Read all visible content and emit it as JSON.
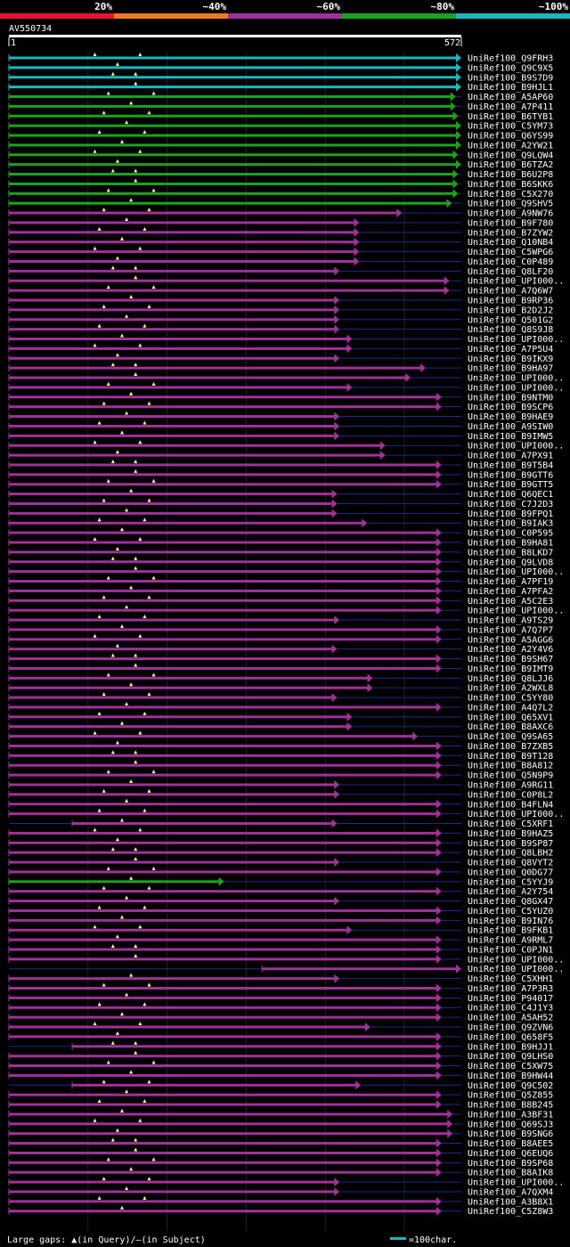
{
  "header": {
    "legend_bands": [
      {
        "label": "20%",
        "color": "#e8142b"
      },
      {
        "label": "~40%",
        "color": "#ef7a1e"
      },
      {
        "label": "~60%",
        "color": "#a0309a"
      },
      {
        "label": "~80%",
        "color": "#1ea21e"
      },
      {
        "label": "~100%",
        "color": "#19b8c0"
      }
    ],
    "query_id": "AV550734",
    "ruler_start": "1",
    "ruler_end": "572"
  },
  "colors": {
    "cyan": "#19b8c0",
    "green": "#1ea21e",
    "magenta": "#a0309a",
    "gap_line": "#1e2a8a",
    "gap_marker": "#ffff80",
    "grid": "#222222"
  },
  "query_length": 572,
  "hits": [
    {
      "label": "UniRef100_Q9FRH3",
      "c": "cyan",
      "s": 0,
      "e": 572
    },
    {
      "label": "UniRef100_Q9C9X5",
      "c": "cyan",
      "s": 0,
      "e": 572
    },
    {
      "label": "UniRef100_B9S7D9",
      "c": "cyan",
      "s": 0,
      "e": 572
    },
    {
      "label": "UniRef100_B9HJL1",
      "c": "cyan",
      "s": 0,
      "e": 572
    },
    {
      "label": "UniRef100_A5AP60",
      "c": "green",
      "s": 0,
      "e": 565
    },
    {
      "label": "UniRef100_A7P411",
      "c": "green",
      "s": 0,
      "e": 565
    },
    {
      "label": "UniRef100_B6TYB1",
      "c": "green",
      "s": 0,
      "e": 568
    },
    {
      "label": "UniRef100_C5YM73",
      "c": "green",
      "s": 0,
      "e": 572
    },
    {
      "label": "UniRef100_Q6YS99",
      "c": "green",
      "s": 0,
      "e": 572
    },
    {
      "label": "UniRef100_A2YW21",
      "c": "green",
      "s": 0,
      "e": 572
    },
    {
      "label": "UniRef100_Q9LQW4",
      "c": "green",
      "s": 0,
      "e": 568
    },
    {
      "label": "UniRef100_B6TZA2",
      "c": "green",
      "s": 0,
      "e": 572
    },
    {
      "label": "UniRef100_B6U2P8",
      "c": "green",
      "s": 0,
      "e": 568
    },
    {
      "label": "UniRef100_B6SKK6",
      "c": "green",
      "s": 0,
      "e": 568
    },
    {
      "label": "UniRef100_C5X270",
      "c": "green",
      "s": 0,
      "e": 568
    },
    {
      "label": "UniRef100_Q9SHV5",
      "c": "green",
      "s": 0,
      "e": 560
    },
    {
      "label": "UniRef100_A9NW76",
      "c": "magenta",
      "s": 0,
      "e": 497
    },
    {
      "label": "UniRef100_B9F780",
      "c": "magenta",
      "s": 0,
      "e": 443
    },
    {
      "label": "UniRef100_B7ZYW2",
      "c": "magenta",
      "s": 0,
      "e": 443
    },
    {
      "label": "UniRef100_Q10NB4",
      "c": "magenta",
      "s": 0,
      "e": 443
    },
    {
      "label": "UniRef100_C5WPG6",
      "c": "magenta",
      "s": 0,
      "e": 443
    },
    {
      "label": "UniRef100_C0P489",
      "c": "magenta",
      "s": 0,
      "e": 443
    },
    {
      "label": "UniRef100_Q8LF20",
      "c": "magenta",
      "s": 0,
      "e": 418
    },
    {
      "label": "UniRef100_UPI000..",
      "c": "magenta",
      "s": 0,
      "e": 557
    },
    {
      "label": "UniRef100_A7Q6W7",
      "c": "magenta",
      "s": 0,
      "e": 557
    },
    {
      "label": "UniRef100_B9RP36",
      "c": "magenta",
      "s": 0,
      "e": 418
    },
    {
      "label": "UniRef100_B2D2J2",
      "c": "magenta",
      "s": 0,
      "e": 418
    },
    {
      "label": "UniRef100_Q501G2",
      "c": "magenta",
      "s": 0,
      "e": 418
    },
    {
      "label": "UniRef100_Q8S9J8",
      "c": "magenta",
      "s": 0,
      "e": 418
    },
    {
      "label": "UniRef100_UPI000..",
      "c": "magenta",
      "s": 0,
      "e": 434
    },
    {
      "label": "UniRef100_A7P5U4",
      "c": "magenta",
      "s": 0,
      "e": 434
    },
    {
      "label": "UniRef100_B9IKX9",
      "c": "magenta",
      "s": 0,
      "e": 418
    },
    {
      "label": "UniRef100_B9HA97",
      "c": "magenta",
      "s": 0,
      "e": 527
    },
    {
      "label": "UniRef100_UPI000..",
      "c": "magenta",
      "s": 0,
      "e": 508
    },
    {
      "label": "UniRef100_UPI000..",
      "c": "magenta",
      "s": 0,
      "e": 434
    },
    {
      "label": "UniRef100_B9NTM0",
      "c": "magenta",
      "s": 0,
      "e": 547
    },
    {
      "label": "UniRef100_B9SCP6",
      "c": "magenta",
      "s": 0,
      "e": 547
    },
    {
      "label": "UniRef100_B9HAE9",
      "c": "magenta",
      "s": 0,
      "e": 418
    },
    {
      "label": "UniRef100_A9SIW0",
      "c": "magenta",
      "s": 0,
      "e": 418
    },
    {
      "label": "UniRef100_B9IMW5",
      "c": "magenta",
      "s": 0,
      "e": 418
    },
    {
      "label": "UniRef100_UPI000..",
      "c": "magenta",
      "s": 0,
      "e": 476
    },
    {
      "label": "UniRef100_A7PX91",
      "c": "magenta",
      "s": 0,
      "e": 476
    },
    {
      "label": "UniRef100_B9T5B4",
      "c": "magenta",
      "s": 0,
      "e": 547
    },
    {
      "label": "UniRef100_B9GTT6",
      "c": "magenta",
      "s": 0,
      "e": 547
    },
    {
      "label": "UniRef100_B9GTT5",
      "c": "magenta",
      "s": 0,
      "e": 547
    },
    {
      "label": "UniRef100_Q6QEC1",
      "c": "magenta",
      "s": 0,
      "e": 415
    },
    {
      "label": "UniRef100_C7J2D3",
      "c": "magenta",
      "s": 0,
      "e": 415
    },
    {
      "label": "UniRef100_B9FPQ1",
      "c": "magenta",
      "s": 0,
      "e": 415
    },
    {
      "label": "UniRef100_B9IAK3",
      "c": "magenta",
      "s": 0,
      "e": 453
    },
    {
      "label": "UniRef100_C0P595",
      "c": "magenta",
      "s": 0,
      "e": 547
    },
    {
      "label": "UniRef100_B9HA81",
      "c": "magenta",
      "s": 0,
      "e": 547
    },
    {
      "label": "UniRef100_B8LKD7",
      "c": "magenta",
      "s": 0,
      "e": 547
    },
    {
      "label": "UniRef100_Q9LVD8",
      "c": "magenta",
      "s": 0,
      "e": 547
    },
    {
      "label": "UniRef100_UPI000..",
      "c": "magenta",
      "s": 0,
      "e": 547
    },
    {
      "label": "UniRef100_A7PF19",
      "c": "magenta",
      "s": 0,
      "e": 547
    },
    {
      "label": "UniRef100_A7PFA2",
      "c": "magenta",
      "s": 0,
      "e": 547
    },
    {
      "label": "UniRef100_A5C2E3",
      "c": "magenta",
      "s": 0,
      "e": 547
    },
    {
      "label": "UniRef100_UPI000..",
      "c": "magenta",
      "s": 0,
      "e": 547
    },
    {
      "label": "UniRef100_A9TS29",
      "c": "magenta",
      "s": 0,
      "e": 418
    },
    {
      "label": "UniRef100_A7Q7P7",
      "c": "magenta",
      "s": 0,
      "e": 547
    },
    {
      "label": "UniRef100_A5AGG6",
      "c": "magenta",
      "s": 0,
      "e": 547
    },
    {
      "label": "UniRef100_A2Y4V6",
      "c": "magenta",
      "s": 0,
      "e": 415
    },
    {
      "label": "UniRef100_B9SH67",
      "c": "magenta",
      "s": 0,
      "e": 547
    },
    {
      "label": "UniRef100_B9IMT9",
      "c": "magenta",
      "s": 0,
      "e": 547
    },
    {
      "label": "UniRef100_Q8LJJ6",
      "c": "magenta",
      "s": 0,
      "e": 460
    },
    {
      "label": "UniRef100_A2WXL8",
      "c": "magenta",
      "s": 0,
      "e": 460
    },
    {
      "label": "UniRef100_C5YY80",
      "c": "magenta",
      "s": 0,
      "e": 415
    },
    {
      "label": "UniRef100_A4Q7L2",
      "c": "magenta",
      "s": 0,
      "e": 547
    },
    {
      "label": "UniRef100_Q65XV1",
      "c": "magenta",
      "s": 0,
      "e": 434
    },
    {
      "label": "UniRef100_B8AXC6",
      "c": "magenta",
      "s": 0,
      "e": 434
    },
    {
      "label": "UniRef100_Q9SA65",
      "c": "magenta",
      "s": 0,
      "e": 517
    },
    {
      "label": "UniRef100_B7ZXB5",
      "c": "magenta",
      "s": 0,
      "e": 547
    },
    {
      "label": "UniRef100_B9T128",
      "c": "magenta",
      "s": 0,
      "e": 547
    },
    {
      "label": "UniRef100_B8A812",
      "c": "magenta",
      "s": 0,
      "e": 547
    },
    {
      "label": "UniRef100_Q5N9P9",
      "c": "magenta",
      "s": 0,
      "e": 547
    },
    {
      "label": "UniRef100_A9RG11",
      "c": "magenta",
      "s": 0,
      "e": 418
    },
    {
      "label": "UniRef100_C0P8L2",
      "c": "magenta",
      "s": 0,
      "e": 418
    },
    {
      "label": "UniRef100_B4FLN4",
      "c": "magenta",
      "s": 0,
      "e": 547
    },
    {
      "label": "UniRef100_UPI000..",
      "c": "magenta",
      "s": 0,
      "e": 547
    },
    {
      "label": "UniRef100_C5XRF1",
      "c": "magenta",
      "s": 80,
      "e": 415
    },
    {
      "label": "UniRef100_B9HAZ5",
      "c": "magenta",
      "s": 0,
      "e": 547
    },
    {
      "label": "UniRef100_B9SP87",
      "c": "magenta",
      "s": 0,
      "e": 547
    },
    {
      "label": "UniRef100_Q8LBH2",
      "c": "magenta",
      "s": 0,
      "e": 547
    },
    {
      "label": "UniRef100_Q8VYT2",
      "c": "magenta",
      "s": 0,
      "e": 418
    },
    {
      "label": "UniRef100_Q0DG77",
      "c": "magenta",
      "s": 0,
      "e": 547
    },
    {
      "label": "UniRef100_C5YYJ9",
      "c": "green",
      "s": 0,
      "e": 272
    },
    {
      "label": "UniRef100_A2Y754",
      "c": "magenta",
      "s": 0,
      "e": 547
    },
    {
      "label": "UniRef100_Q8GX47",
      "c": "magenta",
      "s": 0,
      "e": 418
    },
    {
      "label": "UniRef100_C5YUZ0",
      "c": "magenta",
      "s": 0,
      "e": 547
    },
    {
      "label": "UniRef100_B9IN76",
      "c": "magenta",
      "s": 0,
      "e": 547
    },
    {
      "label": "UniRef100_B9FKB1",
      "c": "magenta",
      "s": 0,
      "e": 434
    },
    {
      "label": "UniRef100_A9RML7",
      "c": "magenta",
      "s": 0,
      "e": 547
    },
    {
      "label": "UniRef100_C0PJN1",
      "c": "magenta",
      "s": 0,
      "e": 547
    },
    {
      "label": "UniRef100_UPI000..",
      "c": "magenta",
      "s": 0,
      "e": 547
    },
    {
      "label": "UniRef100_UPI000..",
      "c": "magenta",
      "s": 320,
      "e": 572
    },
    {
      "label": "UniRef100_C5XHH1",
      "c": "magenta",
      "s": 0,
      "e": 418
    },
    {
      "label": "UniRef100_A7P3R3",
      "c": "magenta",
      "s": 0,
      "e": 547
    },
    {
      "label": "UniRef100_P94017",
      "c": "magenta",
      "s": 0,
      "e": 547
    },
    {
      "label": "UniRef100_C4J1Y3",
      "c": "magenta",
      "s": 0,
      "e": 547
    },
    {
      "label": "UniRef100_A5AH52",
      "c": "magenta",
      "s": 0,
      "e": 547
    },
    {
      "label": "UniRef100_Q9ZVN6",
      "c": "magenta",
      "s": 0,
      "e": 457
    },
    {
      "label": "UniRef100_Q658F5",
      "c": "magenta",
      "s": 0,
      "e": 547
    },
    {
      "label": "UniRef100_B9HJJ1",
      "c": "magenta",
      "s": 80,
      "e": 547
    },
    {
      "label": "UniRef100_Q9LHS0",
      "c": "magenta",
      "s": 0,
      "e": 547
    },
    {
      "label": "UniRef100_C5XW75",
      "c": "magenta",
      "s": 0,
      "e": 547
    },
    {
      "label": "UniRef100_B9HW44",
      "c": "magenta",
      "s": 0,
      "e": 547
    },
    {
      "label": "UniRef100_Q9C502",
      "c": "magenta",
      "s": 80,
      "e": 445
    },
    {
      "label": "UniRef100_Q5Z855",
      "c": "magenta",
      "s": 0,
      "e": 547
    },
    {
      "label": "UniRef100_B8B245",
      "c": "magenta",
      "s": 0,
      "e": 547
    },
    {
      "label": "UniRef100_A3BF31",
      "c": "magenta",
      "s": 0,
      "e": 561
    },
    {
      "label": "UniRef100_Q69SJ3",
      "c": "magenta",
      "s": 0,
      "e": 561
    },
    {
      "label": "UniRef100_B9SNG6",
      "c": "magenta",
      "s": 0,
      "e": 561
    },
    {
      "label": "UniRef100_B8AEE5",
      "c": "magenta",
      "s": 0,
      "e": 547
    },
    {
      "label": "UniRef100_Q6EUQ6",
      "c": "magenta",
      "s": 0,
      "e": 547
    },
    {
      "label": "UniRef100_B9SP68",
      "c": "magenta",
      "s": 0,
      "e": 547
    },
    {
      "label": "UniRef100_B8AIK8",
      "c": "magenta",
      "s": 0,
      "e": 547
    },
    {
      "label": "UniRef100_UPI000..",
      "c": "magenta",
      "s": 0,
      "e": 418
    },
    {
      "label": "UniRef100_A7QXM4",
      "c": "magenta",
      "s": 0,
      "e": 418
    },
    {
      "label": "UniRef100_A3B8X1",
      "c": "magenta",
      "s": 0,
      "e": 547
    },
    {
      "label": "UniRef100_C5Z8W3",
      "c": "magenta",
      "s": 0,
      "e": 547
    }
  ],
  "footer": {
    "gap_legend": "Large gaps: ▲(in Query)/‒(in Subject)",
    "scale_text": "=100char."
  }
}
